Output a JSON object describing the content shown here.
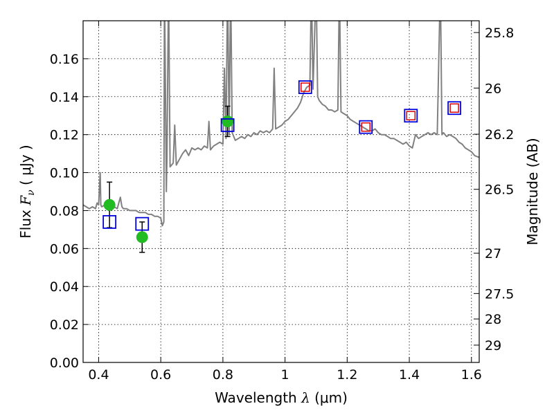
{
  "chart_data": {
    "type": "scatter",
    "xlabel": {
      "prefix": "Wavelength  ",
      "symbol": "λ",
      "unit": " (μm)"
    },
    "ylabel": {
      "prefix": "Flux  ",
      "symbol": "F",
      "sub": "ν",
      "unit": "  ( μJy )"
    },
    "y2label": "Magnitude (AB)",
    "xlim": [
      0.35,
      1.625
    ],
    "ylim": [
      0.0,
      0.18
    ],
    "grid": true,
    "x_ticks": [
      0.4,
      0.6,
      0.8,
      1.0,
      1.2,
      1.4,
      1.6
    ],
    "x_tick_labels": [
      "0.4",
      "0.6",
      "0.8",
      "1",
      "1.2",
      "1.4",
      "1.6"
    ],
    "y_ticks": [
      0.0,
      0.02,
      0.04,
      0.06,
      0.08,
      0.1,
      0.12,
      0.14,
      0.16
    ],
    "y_tick_labels": [
      "0.00",
      "0.02",
      "0.04",
      "0.06",
      "0.08",
      "0.10",
      "0.12",
      "0.14",
      "0.16"
    ],
    "mag_ticks": [
      25.8,
      26,
      26.2,
      26.5,
      27,
      27.5,
      28,
      29
    ],
    "mag_tick_labels": [
      "25.8",
      "26",
      "26.2",
      "26.5",
      "27",
      "27.5",
      "28",
      "29"
    ],
    "colors": {
      "spectrum": "#808080",
      "measured_fill": "#22bb22",
      "model_box": "#0000dd",
      "model_inner": "#dd0000",
      "errorbar": "#000000",
      "grid": "#000000"
    },
    "series": [
      {
        "kind": "line",
        "points": [
          [
            0.35,
            0.083
          ],
          [
            0.36,
            0.082
          ],
          [
            0.37,
            0.081
          ],
          [
            0.38,
            0.082
          ],
          [
            0.39,
            0.081
          ],
          [
            0.395,
            0.084
          ],
          [
            0.4,
            0.083
          ],
          [
            0.405,
            0.1
          ],
          [
            0.407,
            0.083
          ],
          [
            0.41,
            0.082
          ],
          [
            0.42,
            0.083
          ],
          [
            0.43,
            0.084
          ],
          [
            0.44,
            0.083
          ],
          [
            0.45,
            0.082
          ],
          [
            0.46,
            0.081
          ],
          [
            0.47,
            0.087
          ],
          [
            0.475,
            0.082
          ],
          [
            0.48,
            0.081
          ],
          [
            0.49,
            0.081
          ],
          [
            0.5,
            0.08
          ],
          [
            0.51,
            0.08
          ],
          [
            0.52,
            0.08
          ],
          [
            0.53,
            0.079
          ],
          [
            0.54,
            0.079
          ],
          [
            0.55,
            0.079
          ],
          [
            0.56,
            0.078
          ],
          [
            0.57,
            0.078
          ],
          [
            0.58,
            0.077
          ],
          [
            0.59,
            0.077
          ],
          [
            0.6,
            0.076
          ],
          [
            0.605,
            0.072
          ],
          [
            0.61,
            0.074
          ],
          [
            0.612,
            0.2
          ],
          [
            0.618,
            0.09
          ],
          [
            0.62,
            0.108
          ],
          [
            0.625,
            0.2
          ],
          [
            0.63,
            0.103
          ],
          [
            0.64,
            0.105
          ],
          [
            0.645,
            0.125
          ],
          [
            0.65,
            0.104
          ],
          [
            0.66,
            0.107
          ],
          [
            0.67,
            0.11
          ],
          [
            0.68,
            0.112
          ],
          [
            0.69,
            0.109
          ],
          [
            0.7,
            0.113
          ],
          [
            0.71,
            0.112
          ],
          [
            0.72,
            0.113
          ],
          [
            0.73,
            0.112
          ],
          [
            0.74,
            0.114
          ],
          [
            0.75,
            0.113
          ],
          [
            0.755,
            0.127
          ],
          [
            0.76,
            0.112
          ],
          [
            0.77,
            0.114
          ],
          [
            0.78,
            0.115
          ],
          [
            0.79,
            0.116
          ],
          [
            0.8,
            0.115
          ],
          [
            0.805,
            0.155
          ],
          [
            0.81,
            0.118
          ],
          [
            0.815,
            0.2
          ],
          [
            0.82,
            0.12
          ],
          [
            0.825,
            0.2
          ],
          [
            0.83,
            0.121
          ],
          [
            0.84,
            0.117
          ],
          [
            0.85,
            0.118
          ],
          [
            0.86,
            0.119
          ],
          [
            0.87,
            0.118
          ],
          [
            0.88,
            0.12
          ],
          [
            0.89,
            0.119
          ],
          [
            0.9,
            0.121
          ],
          [
            0.91,
            0.12
          ],
          [
            0.92,
            0.122
          ],
          [
            0.93,
            0.121
          ],
          [
            0.94,
            0.122
          ],
          [
            0.95,
            0.121
          ],
          [
            0.96,
            0.123
          ],
          [
            0.965,
            0.155
          ],
          [
            0.97,
            0.123
          ],
          [
            0.98,
            0.124
          ],
          [
            0.99,
            0.125
          ],
          [
            1.0,
            0.127
          ],
          [
            1.01,
            0.128
          ],
          [
            1.02,
            0.13
          ],
          [
            1.03,
            0.132
          ],
          [
            1.04,
            0.134
          ],
          [
            1.05,
            0.137
          ],
          [
            1.06,
            0.142
          ],
          [
            1.07,
            0.145
          ],
          [
            1.08,
            0.146
          ],
          [
            1.085,
            0.2
          ],
          [
            1.09,
            0.144
          ],
          [
            1.1,
            0.2
          ],
          [
            1.105,
            0.14
          ],
          [
            1.11,
            0.138
          ],
          [
            1.12,
            0.136
          ],
          [
            1.13,
            0.135
          ],
          [
            1.14,
            0.133
          ],
          [
            1.15,
            0.133
          ],
          [
            1.16,
            0.132
          ],
          [
            1.17,
            0.133
          ],
          [
            1.175,
            0.2
          ],
          [
            1.18,
            0.132
          ],
          [
            1.19,
            0.131
          ],
          [
            1.2,
            0.13
          ],
          [
            1.21,
            0.128
          ],
          [
            1.22,
            0.127
          ],
          [
            1.23,
            0.126
          ],
          [
            1.24,
            0.125
          ],
          [
            1.25,
            0.124
          ],
          [
            1.26,
            0.123
          ],
          [
            1.27,
            0.122
          ],
          [
            1.28,
            0.122
          ],
          [
            1.29,
            0.123
          ],
          [
            1.3,
            0.121
          ],
          [
            1.31,
            0.12
          ],
          [
            1.32,
            0.12
          ],
          [
            1.33,
            0.119
          ],
          [
            1.34,
            0.118
          ],
          [
            1.35,
            0.118
          ],
          [
            1.36,
            0.117
          ],
          [
            1.37,
            0.116
          ],
          [
            1.38,
            0.115
          ],
          [
            1.39,
            0.116
          ],
          [
            1.4,
            0.114
          ],
          [
            1.41,
            0.113
          ],
          [
            1.42,
            0.12
          ],
          [
            1.43,
            0.118
          ],
          [
            1.44,
            0.119
          ],
          [
            1.45,
            0.12
          ],
          [
            1.46,
            0.121
          ],
          [
            1.47,
            0.12
          ],
          [
            1.48,
            0.121
          ],
          [
            1.49,
            0.12
          ],
          [
            1.5,
            0.2
          ],
          [
            1.505,
            0.12
          ],
          [
            1.51,
            0.121
          ],
          [
            1.52,
            0.119
          ],
          [
            1.53,
            0.12
          ],
          [
            1.54,
            0.119
          ],
          [
            1.55,
            0.118
          ],
          [
            1.56,
            0.116
          ],
          [
            1.57,
            0.115
          ],
          [
            1.58,
            0.113
          ],
          [
            1.59,
            0.112
          ],
          [
            1.6,
            0.111
          ],
          [
            1.61,
            0.109
          ],
          [
            1.625,
            0.108
          ]
        ]
      },
      {
        "kind": "measured",
        "points": [
          {
            "x": 0.435,
            "y": 0.083,
            "err": 0.012
          },
          {
            "x": 0.54,
            "y": 0.066,
            "err": 0.008
          },
          {
            "x": 0.815,
            "y": 0.127,
            "err": 0.008
          }
        ]
      },
      {
        "kind": "model",
        "points": [
          {
            "x": 0.435,
            "y": 0.074,
            "inner": false
          },
          {
            "x": 0.54,
            "y": 0.073,
            "inner": false
          },
          {
            "x": 0.815,
            "y": 0.125,
            "inner": false
          },
          {
            "x": 1.065,
            "y": 0.145,
            "inner": true
          },
          {
            "x": 1.26,
            "y": 0.124,
            "inner": true
          },
          {
            "x": 1.405,
            "y": 0.13,
            "inner": true
          },
          {
            "x": 1.545,
            "y": 0.134,
            "inner": true
          }
        ]
      }
    ]
  }
}
